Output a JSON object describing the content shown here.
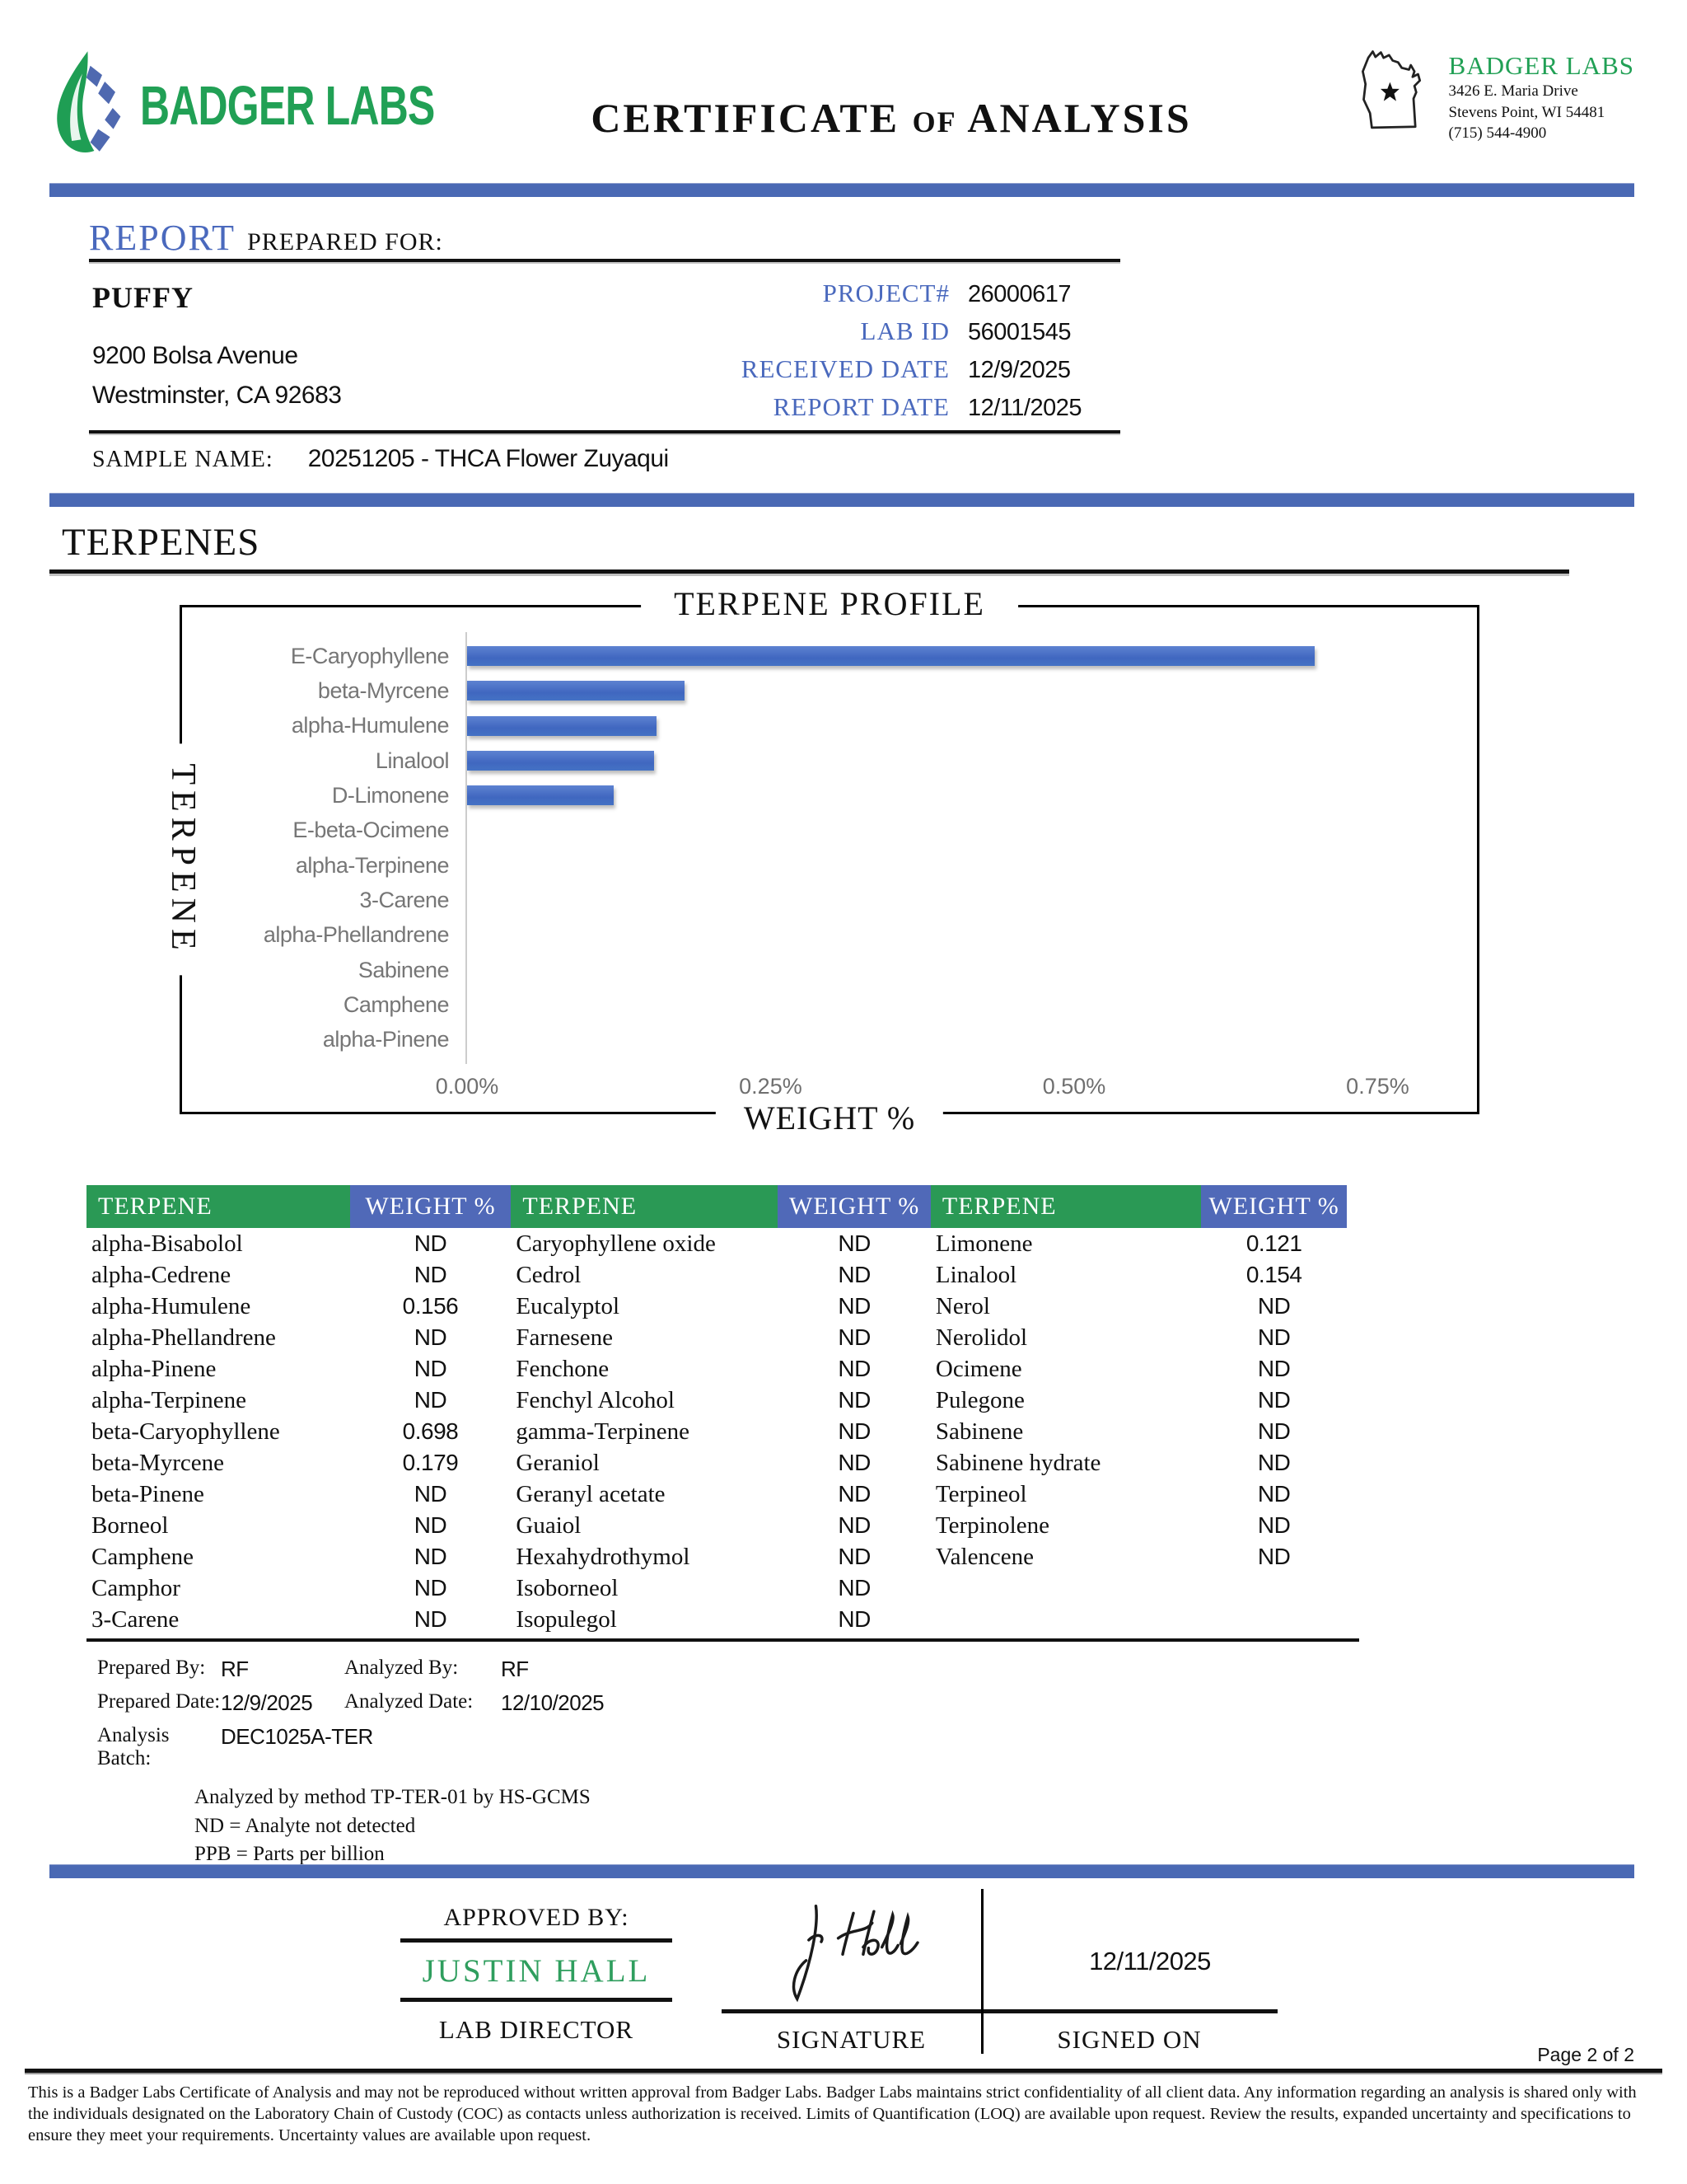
{
  "header": {
    "logo_text": "BADGER LABS",
    "title_part1": "CERTIFICATE",
    "title_part2": "OF",
    "title_part3": "ANALYSIS",
    "lab": {
      "name": "BADGER LABS",
      "address_line1": "3426 E. Maria Drive",
      "address_line2": "Stevens Point, WI 54481",
      "phone": "(715) 544-4900"
    }
  },
  "report": {
    "section_label": "REPORT",
    "section_sublabel": "PREPARED FOR:",
    "client": {
      "name": "PUFFY",
      "address_line1": "9200 Bolsa Avenue",
      "address_line2": "Westminster, CA 92683"
    },
    "meta": [
      {
        "label": "PROJECT#",
        "value": "26000617"
      },
      {
        "label": "LAB ID",
        "value": "56001545"
      },
      {
        "label": "RECEIVED DATE",
        "value": "12/9/2025"
      },
      {
        "label": "REPORT DATE",
        "value": "12/11/2025"
      }
    ],
    "sample_name_label": "SAMPLE NAME:",
    "sample_name": "20251205 - THCA Flower Zuyaqui"
  },
  "section_title": "TERPENES",
  "chart_data": {
    "type": "bar",
    "orientation": "horizontal",
    "title": "TERPENE PROFILE",
    "xlabel": "WEIGHT %",
    "ylabel": "TERPENE",
    "categories": [
      "E-Caryophyllene",
      "beta-Myrcene",
      "alpha-Humulene",
      "Linalool",
      "D-Limonene",
      "E-beta-Ocimene",
      "alpha-Terpinene",
      "3-Carene",
      "alpha-Phellandrene",
      "Sabinene",
      "Camphene",
      "alpha-Pinene"
    ],
    "values": [
      0.698,
      0.179,
      0.156,
      0.154,
      0.121,
      0,
      0,
      0,
      0,
      0,
      0,
      0
    ],
    "xlim": [
      0,
      0.825
    ],
    "xticks": [
      {
        "label": "0.00%",
        "value": 0
      },
      {
        "label": "0.25%",
        "value": 0.25
      },
      {
        "label": "0.50%",
        "value": 0.5
      },
      {
        "label": "0.75%",
        "value": 0.75
      }
    ],
    "bar_color": "#4472c4",
    "grid": false,
    "legend_position": "none"
  },
  "table": {
    "header_terpene": "TERPENE",
    "header_weight": "WEIGHT %",
    "columns": [
      {
        "rows": [
          {
            "name": "alpha-Bisabolol",
            "value": "ND"
          },
          {
            "name": "alpha-Cedrene",
            "value": "ND"
          },
          {
            "name": "alpha-Humulene",
            "value": "0.156"
          },
          {
            "name": "alpha-Phellandrene",
            "value": "ND"
          },
          {
            "name": "alpha-Pinene",
            "value": "ND"
          },
          {
            "name": "alpha-Terpinene",
            "value": "ND"
          },
          {
            "name": "beta-Caryophyllene",
            "value": "0.698"
          },
          {
            "name": "beta-Myrcene",
            "value": "0.179"
          },
          {
            "name": "beta-Pinene",
            "value": "ND"
          },
          {
            "name": "Borneol",
            "value": "ND"
          },
          {
            "name": "Camphene",
            "value": "ND"
          },
          {
            "name": "Camphor",
            "value": "ND"
          },
          {
            "name": "3-Carene",
            "value": "ND"
          }
        ]
      },
      {
        "rows": [
          {
            "name": "Caryophyllene oxide",
            "value": "ND"
          },
          {
            "name": "Cedrol",
            "value": "ND"
          },
          {
            "name": "Eucalyptol",
            "value": "ND"
          },
          {
            "name": "Farnesene",
            "value": "ND"
          },
          {
            "name": "Fenchone",
            "value": "ND"
          },
          {
            "name": "Fenchyl Alcohol",
            "value": "ND"
          },
          {
            "name": "gamma-Terpinene",
            "value": "ND"
          },
          {
            "name": "Geraniol",
            "value": "ND"
          },
          {
            "name": "Geranyl acetate",
            "value": "ND"
          },
          {
            "name": "Guaiol",
            "value": "ND"
          },
          {
            "name": "Hexahydrothymol",
            "value": "ND"
          },
          {
            "name": "Isoborneol",
            "value": "ND"
          },
          {
            "name": "Isopulegol",
            "value": "ND"
          }
        ]
      },
      {
        "rows": [
          {
            "name": "Limonene",
            "value": "0.121"
          },
          {
            "name": "Linalool",
            "value": "0.154"
          },
          {
            "name": "Nerol",
            "value": "ND"
          },
          {
            "name": "Nerolidol",
            "value": "ND"
          },
          {
            "name": "Ocimene",
            "value": "ND"
          },
          {
            "name": "Pulegone",
            "value": "ND"
          },
          {
            "name": "Sabinene",
            "value": "ND"
          },
          {
            "name": "Sabinene hydrate",
            "value": "ND"
          },
          {
            "name": "Terpineol",
            "value": "ND"
          },
          {
            "name": "Terpinolene",
            "value": "ND"
          },
          {
            "name": "Valencene",
            "value": "ND"
          }
        ]
      }
    ]
  },
  "analysis": {
    "prepared_by_label": "Prepared By:",
    "prepared_by": "RF",
    "analyzed_by_label": "Analyzed By:",
    "analyzed_by": "RF",
    "prepared_date_label": "Prepared Date:",
    "prepared_date": "12/9/2025",
    "analyzed_date_label": "Analyzed Date:",
    "analyzed_date": "12/10/2025",
    "batch_label": "Analysis Batch:",
    "batch": "DEC1025A-TER",
    "method_note": "Analyzed by method TP-TER-01 by HS-GCMS",
    "nd_note": "ND = Analyte not detected",
    "ppb_note": "PPB = Parts per billion"
  },
  "approval": {
    "approved_by_label": "APPROVED BY:",
    "approver_name": "JUSTIN HALL",
    "approver_title": "LAB DIRECTOR",
    "signature_label": "SIGNATURE",
    "signed_on_label": "SIGNED ON",
    "signed_date": "12/11/2025"
  },
  "footer": {
    "page_label": "Page 2 of 2",
    "disclaimer": "This is a Badger Labs Certificate of Analysis and may not be reproduced without written approval from Badger Labs. Badger Labs maintains strict confidentiality of all client data. Any information regarding an analysis is shared only with the individuals designated on the Laboratory Chain of Custody (COC) as contacts unless authorization is received. Limits of Quantification (LOQ) are available upon request. Review the results, expanded uncertainty and specifications to ensure they meet your requirements. Uncertainty values are available upon request."
  },
  "colors": {
    "accent_bar_blue": "#4a69b4",
    "label_blue": "#4a69bd",
    "logo_green": "#21a055",
    "table_header_green": "#2a9955",
    "table_header_blue": "#5069b8",
    "chart_bar_blue": "#4472c4",
    "chart_text_gray": "#767676",
    "approver_green": "#2f9e5e"
  }
}
